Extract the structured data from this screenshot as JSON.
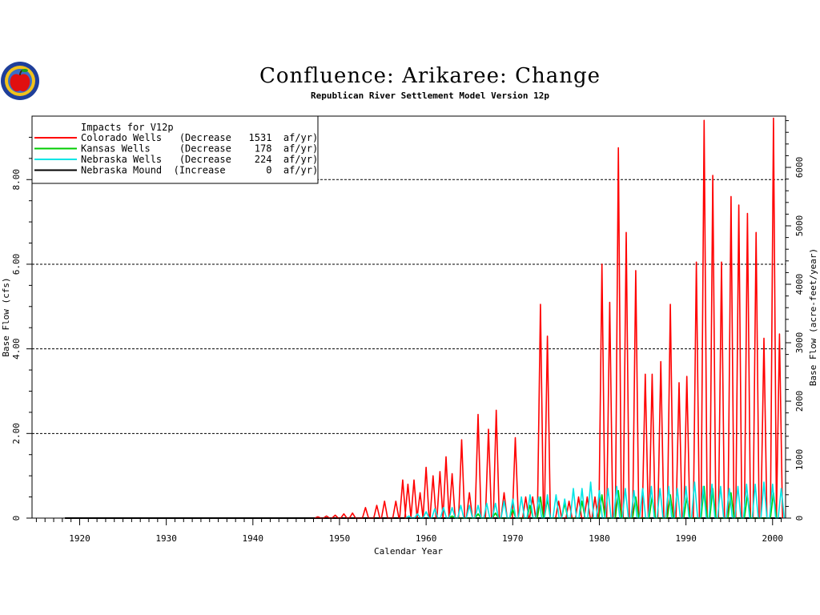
{
  "chart_data": {
    "type": "line",
    "title": "Confluence: Arikaree: Change",
    "subtitle": "Republican River Settlement Model Version 12p",
    "xlabel": "Calendar Year",
    "ylabel": "Base Flow (cfs)",
    "y2label": "Base Flow (acre-feet/year)",
    "xlim": [
      1914.5,
      2001.5
    ],
    "ylim": [
      0,
      9.5
    ],
    "y2lim": [
      0,
      6877
    ],
    "x_ticks": [
      "1920",
      "1930",
      "1940",
      "1950",
      "1960",
      "1970",
      "1980",
      "1990",
      "2000"
    ],
    "y_ticks": [
      "0",
      "2.00",
      "4.00",
      "6.00",
      "8.00"
    ],
    "y2_ticks": [
      "0",
      "1000",
      "2000",
      "3000",
      "4000",
      "5000",
      "6000"
    ],
    "gridlines_y": [
      2,
      4,
      6,
      8
    ],
    "legend": {
      "placement": "top-left",
      "header": "Impacts for V12p",
      "entries": [
        {
          "text": "Colorado Wells   (Decrease   1531  af/yr)",
          "color": "#ff0000"
        },
        {
          "text": "Kansas Wells     (Decrease    178  af/yr)",
          "color": "#00cc00"
        },
        {
          "text": "Nebraska Wells   (Decrease    224  af/yr)",
          "color": "#00e5e5"
        },
        {
          "text": "Nebraska Mound  (Increase       0  af/yr)",
          "color": "#000000"
        }
      ]
    },
    "series": [
      {
        "name": "Colorado Wells",
        "color": "#ff0000",
        "peaks": [
          [
            1947.5,
            0.03
          ],
          [
            1948.5,
            0.05
          ],
          [
            1949.5,
            0.07
          ],
          [
            1950.5,
            0.1
          ],
          [
            1951.5,
            0.12
          ],
          [
            1953.0,
            0.25
          ],
          [
            1954.3,
            0.3
          ],
          [
            1955.2,
            0.4
          ],
          [
            1956.5,
            0.4
          ],
          [
            1957.3,
            0.9
          ],
          [
            1957.9,
            0.8
          ],
          [
            1958.6,
            0.9
          ],
          [
            1959.3,
            0.6
          ],
          [
            1960.0,
            1.2
          ],
          [
            1960.8,
            1.0
          ],
          [
            1961.6,
            1.1
          ],
          [
            1962.3,
            1.45
          ],
          [
            1963.0,
            1.05
          ],
          [
            1964.1,
            1.85
          ],
          [
            1965.0,
            0.6
          ],
          [
            1966.0,
            2.45
          ],
          [
            1967.2,
            2.1
          ],
          [
            1968.1,
            2.55
          ],
          [
            1969.0,
            0.6
          ],
          [
            1970.3,
            1.9
          ],
          [
            1971.5,
            0.5
          ],
          [
            1972.3,
            0.5
          ],
          [
            1973.2,
            5.05
          ],
          [
            1974.0,
            4.3
          ],
          [
            1975.3,
            0.4
          ],
          [
            1976.5,
            0.4
          ],
          [
            1977.6,
            0.5
          ],
          [
            1978.6,
            0.5
          ],
          [
            1979.5,
            0.5
          ],
          [
            1980.3,
            6.0
          ],
          [
            1981.2,
            5.1
          ],
          [
            1982.2,
            8.75
          ],
          [
            1983.1,
            6.75
          ],
          [
            1984.2,
            5.85
          ],
          [
            1985.3,
            3.4
          ],
          [
            1986.1,
            3.4
          ],
          [
            1987.1,
            3.7
          ],
          [
            1988.2,
            5.05
          ],
          [
            1989.2,
            3.2
          ],
          [
            1990.1,
            3.35
          ],
          [
            1991.2,
            6.05
          ],
          [
            1992.1,
            9.4
          ],
          [
            1993.1,
            8.1
          ],
          [
            1994.1,
            6.05
          ],
          [
            1995.2,
            7.6
          ],
          [
            1996.1,
            7.4
          ],
          [
            1997.1,
            7.2
          ],
          [
            1998.1,
            6.75
          ],
          [
            1999.0,
            4.25
          ],
          [
            2000.1,
            9.45
          ],
          [
            2000.8,
            4.35
          ]
        ]
      },
      {
        "name": "Kansas Wells",
        "color": "#00cc00",
        "peaks": [
          [
            1963.0,
            0.05
          ],
          [
            1966.0,
            0.1
          ],
          [
            1968.0,
            0.12
          ],
          [
            1970.0,
            0.2
          ],
          [
            1972.0,
            0.3
          ],
          [
            1973.2,
            0.5
          ],
          [
            1974.0,
            0.45
          ],
          [
            1976.0,
            0.35
          ],
          [
            1978.0,
            0.4
          ],
          [
            1980.3,
            0.55
          ],
          [
            1982.2,
            0.65
          ],
          [
            1984.2,
            0.5
          ],
          [
            1986.1,
            0.5
          ],
          [
            1988.2,
            0.55
          ],
          [
            1990.1,
            0.5
          ],
          [
            1992.1,
            0.75
          ],
          [
            1993.1,
            0.7
          ],
          [
            1995.2,
            0.6
          ],
          [
            1997.1,
            0.55
          ],
          [
            2000.1,
            0.6
          ]
        ]
      },
      {
        "name": "Nebraska Wells",
        "color": "#00e5e5",
        "peaks": [
          [
            1958.0,
            0.05
          ],
          [
            1959.0,
            0.1
          ],
          [
            1960.0,
            0.15
          ],
          [
            1961.0,
            0.22
          ],
          [
            1962.0,
            0.25
          ],
          [
            1963.0,
            0.25
          ],
          [
            1964.0,
            0.3
          ],
          [
            1965.0,
            0.3
          ],
          [
            1966.0,
            0.3
          ],
          [
            1967.0,
            0.35
          ],
          [
            1968.0,
            0.35
          ],
          [
            1969.0,
            0.4
          ],
          [
            1970.0,
            0.45
          ],
          [
            1971.0,
            0.5
          ],
          [
            1972.0,
            0.55
          ],
          [
            1973.0,
            0.5
          ],
          [
            1974.0,
            0.55
          ],
          [
            1975.0,
            0.55
          ],
          [
            1976.0,
            0.45
          ],
          [
            1977.0,
            0.7
          ],
          [
            1978.0,
            0.7
          ],
          [
            1979.0,
            0.85
          ],
          [
            1980.0,
            0.65
          ],
          [
            1981.0,
            0.7
          ],
          [
            1982.0,
            0.75
          ],
          [
            1983.0,
            0.7
          ],
          [
            1984.0,
            0.65
          ],
          [
            1985.0,
            0.7
          ],
          [
            1986.0,
            0.75
          ],
          [
            1987.0,
            0.7
          ],
          [
            1988.0,
            0.75
          ],
          [
            1989.0,
            0.7
          ],
          [
            1990.0,
            0.75
          ],
          [
            1991.0,
            0.85
          ],
          [
            1992.0,
            0.75
          ],
          [
            1993.0,
            0.8
          ],
          [
            1994.0,
            0.75
          ],
          [
            1995.0,
            0.7
          ],
          [
            1996.0,
            0.75
          ],
          [
            1997.0,
            0.8
          ],
          [
            1998.0,
            0.8
          ],
          [
            1999.0,
            0.85
          ],
          [
            2000.0,
            0.8
          ],
          [
            2001.0,
            0.7
          ]
        ]
      },
      {
        "name": "Nebraska Mound",
        "color": "#000000",
        "points": [
          [
            1918.3,
            0
          ],
          [
            2001.0,
            0
          ]
        ]
      }
    ]
  }
}
